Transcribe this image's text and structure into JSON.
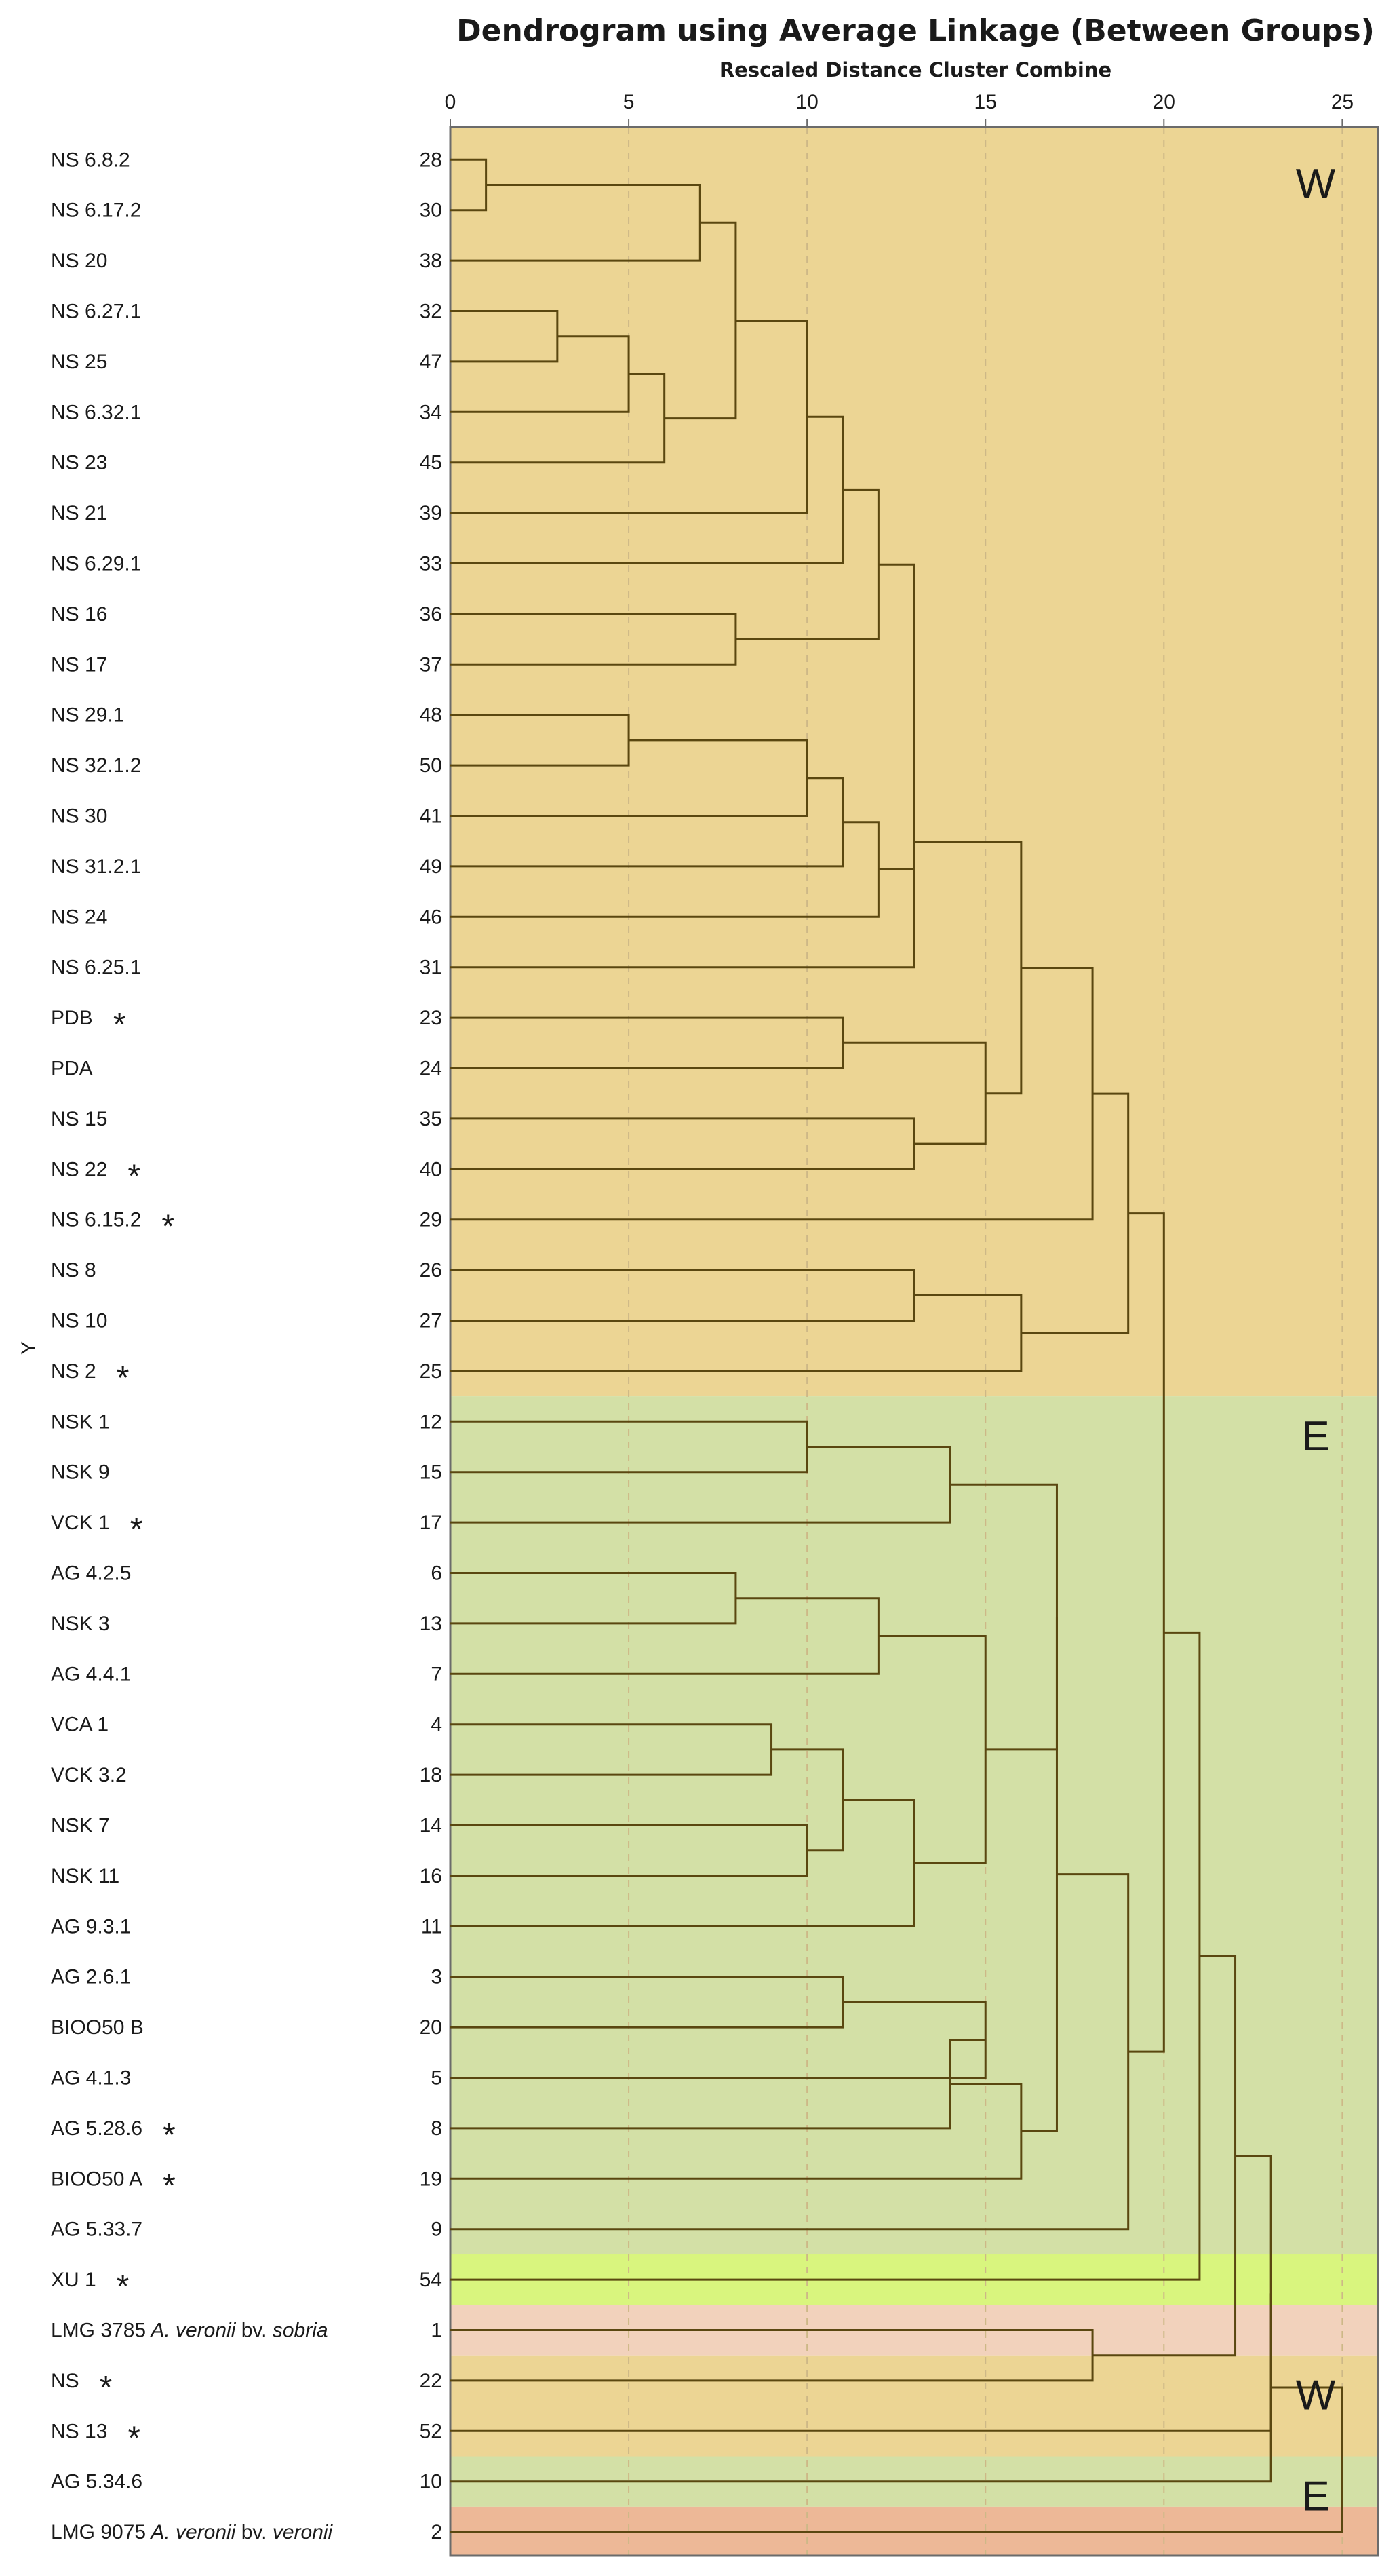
{
  "chart_data": {
    "type": "dendrogram",
    "title": "Dendrogram using Average Linkage (Between Groups)",
    "subtitle": "Rescaled Distance Cluster Combine",
    "ylabel": "Y",
    "xlim": [
      0,
      26
    ],
    "xticks": [
      0,
      5,
      10,
      15,
      20,
      25
    ],
    "leaves": [
      {
        "label": "NS 6.8.2",
        "id": 28,
        "mark": ""
      },
      {
        "label": "NS 6.17.2",
        "id": 30,
        "mark": ""
      },
      {
        "label": "NS 20",
        "id": 38,
        "mark": ""
      },
      {
        "label": "NS  6.27.1",
        "id": 32,
        "mark": ""
      },
      {
        "label": "NS 25",
        "id": 47,
        "mark": ""
      },
      {
        "label": "NS 6.32.1",
        "id": 34,
        "mark": ""
      },
      {
        "label": "NS 23",
        "id": 45,
        "mark": ""
      },
      {
        "label": "NS 21",
        "id": 39,
        "mark": ""
      },
      {
        "label": "NS 6.29.1",
        "id": 33,
        "mark": ""
      },
      {
        "label": "NS 16",
        "id": 36,
        "mark": ""
      },
      {
        "label": "NS 17",
        "id": 37,
        "mark": ""
      },
      {
        "label": "NS 29.1",
        "id": 48,
        "mark": ""
      },
      {
        "label": "NS 32.1.2",
        "id": 50,
        "mark": ""
      },
      {
        "label": "NS 30",
        "id": 41,
        "mark": ""
      },
      {
        "label": "NS 31.2.1",
        "id": 49,
        "mark": ""
      },
      {
        "label": "NS 24",
        "id": 46,
        "mark": ""
      },
      {
        "label": "NS 6.25.1",
        "id": 31,
        "mark": ""
      },
      {
        "label": "PDB",
        "id": 23,
        "mark": "*"
      },
      {
        "label": "PDA",
        "id": 24,
        "mark": ""
      },
      {
        "label": "NS 15",
        "id": 35,
        "mark": ""
      },
      {
        "label": "NS 22",
        "id": 40,
        "mark": "*"
      },
      {
        "label": "NS 6.15.2",
        "id": 29,
        "mark": "*"
      },
      {
        "label": "NS 8",
        "id": 26,
        "mark": ""
      },
      {
        "label": "NS 10",
        "id": 27,
        "mark": ""
      },
      {
        "label": "NS 2",
        "id": 25,
        "mark": "*"
      },
      {
        "label": "NSK 1",
        "id": 12,
        "mark": ""
      },
      {
        "label": "NSK 9",
        "id": 15,
        "mark": ""
      },
      {
        "label": "VCK 1",
        "id": 17,
        "mark": "*"
      },
      {
        "label": "AG  4.2.5",
        "id": 6,
        "mark": ""
      },
      {
        "label": "NSK 3",
        "id": 13,
        "mark": ""
      },
      {
        "label": "AG  4.4.1",
        "id": 7,
        "mark": ""
      },
      {
        "label": "VCA 1",
        "id": 4,
        "mark": ""
      },
      {
        "label": "VCK 3.2",
        "id": 18,
        "mark": ""
      },
      {
        "label": "NSK 7",
        "id": 14,
        "mark": ""
      },
      {
        "label": "NSK 11",
        "id": 16,
        "mark": ""
      },
      {
        "label": "AG 9.3.1",
        "id": 11,
        "mark": ""
      },
      {
        "label": "AG 2.6.1",
        "id": 3,
        "mark": ""
      },
      {
        "label": "BIOO50 B",
        "id": 20,
        "mark": ""
      },
      {
        "label": "AG  4.1.3",
        "id": 5,
        "mark": ""
      },
      {
        "label": "AG  5.28.6",
        "id": 8,
        "mark": "*"
      },
      {
        "label": "BIOO50 A",
        "id": 19,
        "mark": "*"
      },
      {
        "label": "AG 5.33.7",
        "id": 9,
        "mark": ""
      },
      {
        "label": "XU 1",
        "id": 54,
        "mark": "*"
      },
      {
        "label": "LMG 3785",
        "species": "A. veronii",
        "biovar": "bv.",
        "biovar_name": "sobria",
        "id": 1,
        "mark": ""
      },
      {
        "label": "NS",
        "id": 22,
        "mark": "*"
      },
      {
        "label": "NS 13",
        "id": 52,
        "mark": "*"
      },
      {
        "label": "AG 5.34.6",
        "id": 10,
        "mark": ""
      },
      {
        "label": "LMG 9075",
        "species": "A. veronii",
        "biovar": "bv.",
        "biovar_name": "veronii",
        "id": 2,
        "mark": ""
      }
    ],
    "merges": [
      {
        "name": "c1",
        "a": 0,
        "b": 1,
        "h": 1
      },
      {
        "name": "c2",
        "a": "c1",
        "b": 2,
        "h": 7
      },
      {
        "name": "c3",
        "a": 3,
        "b": 4,
        "h": 3
      },
      {
        "name": "c4",
        "a": "c3",
        "b": 5,
        "h": 5
      },
      {
        "name": "c5",
        "a": "c4",
        "b": 6,
        "h": 6
      },
      {
        "name": "c6",
        "a": "c2",
        "b": "c5",
        "h": 8
      },
      {
        "name": "c7",
        "a": "c6",
        "b": 7,
        "h": 10
      },
      {
        "name": "c8",
        "a": "c7",
        "b": 8,
        "h": 11
      },
      {
        "name": "c9",
        "a": 9,
        "b": 10,
        "h": 8
      },
      {
        "name": "c10",
        "a": "c8",
        "b": "c9",
        "h": 12
      },
      {
        "name": "c11",
        "a": 11,
        "b": 12,
        "h": 5
      },
      {
        "name": "c12",
        "a": "c11",
        "b": 13,
        "h": 10
      },
      {
        "name": "c13",
        "a": "c12",
        "b": 14,
        "h": 11
      },
      {
        "name": "c14",
        "a": "c13",
        "b": 15,
        "h": 12
      },
      {
        "name": "c15",
        "a": "c10",
        "b": "c14",
        "h": 13
      },
      {
        "name": "c16",
        "a": "c15",
        "b": 16,
        "h": 13
      },
      {
        "name": "c17",
        "a": 17,
        "b": 18,
        "h": 11
      },
      {
        "name": "c18",
        "a": 19,
        "b": 20,
        "h": 13
      },
      {
        "name": "c19",
        "a": "c17",
        "b": "c18",
        "h": 15
      },
      {
        "name": "c20",
        "a": "c16",
        "b": "c19",
        "h": 16
      },
      {
        "name": "c21",
        "a": "c20",
        "b": 21,
        "h": 18
      },
      {
        "name": "c22",
        "a": 22,
        "b": 23,
        "h": 13
      },
      {
        "name": "c23",
        "a": "c22",
        "b": 24,
        "h": 16
      },
      {
        "name": "c24",
        "a": "c21",
        "b": "c23",
        "h": 19
      },
      {
        "name": "c25",
        "a": 25,
        "b": 26,
        "h": 10
      },
      {
        "name": "c26",
        "a": "c25",
        "b": 27,
        "h": 14
      },
      {
        "name": "c27",
        "a": 28,
        "b": 29,
        "h": 8
      },
      {
        "name": "c28",
        "a": "c27",
        "b": 30,
        "h": 12
      },
      {
        "name": "c29",
        "a": 31,
        "b": 32,
        "h": 9
      },
      {
        "name": "c30",
        "a": 33,
        "b": 34,
        "h": 10
      },
      {
        "name": "c31",
        "a": "c29",
        "b": "c30",
        "h": 11
      },
      {
        "name": "c32",
        "a": "c31",
        "b": 35,
        "h": 13
      },
      {
        "name": "c33",
        "a": "c28",
        "b": "c32",
        "h": 15
      },
      {
        "name": "c34",
        "a": "c26",
        "b": "c33",
        "h": 17
      },
      {
        "name": "c35",
        "a": 36,
        "b": 37,
        "h": 11
      },
      {
        "name": "c36",
        "a": "c35",
        "b": 38,
        "h": 15
      },
      {
        "name": "c37",
        "a": "c36",
        "b": 39,
        "h": 14
      },
      {
        "name": "c38",
        "a": "c37",
        "b": 40,
        "h": 16
      },
      {
        "name": "c39",
        "a": "c34",
        "b": "c38",
        "h": 17
      },
      {
        "name": "c40",
        "a": "c39",
        "b": 41,
        "h": 19
      },
      {
        "name": "c41",
        "a": "c24",
        "b": "c40",
        "h": 20
      },
      {
        "name": "c42",
        "a": "c41",
        "b": 42,
        "h": 21
      },
      {
        "name": "c43",
        "a": 43,
        "b": 44,
        "h": 18
      },
      {
        "name": "c44",
        "a": "c42",
        "b": "c43",
        "h": 22
      },
      {
        "name": "c45",
        "a": "c44",
        "b": 45,
        "h": 23
      },
      {
        "name": "c46",
        "a": "c45",
        "b": 46,
        "h": 23
      },
      {
        "name": "c47",
        "a": "c46",
        "b": 47,
        "h": 25
      }
    ],
    "bands": [
      {
        "from": 0,
        "to": 24,
        "color": "#ecd594",
        "tag": "W"
      },
      {
        "from": 25,
        "to": 41,
        "color": "#d3e0a6",
        "tag": "E"
      },
      {
        "from": 42,
        "to": 42,
        "color": "#d9f57e",
        "tag": ""
      },
      {
        "from": 43,
        "to": 43,
        "color": "#f2d2bc",
        "tag": ""
      },
      {
        "from": 44,
        "to": 45,
        "color": "#ecd594",
        "tag": "W"
      },
      {
        "from": 46,
        "to": 46,
        "color": "#d3e0a6",
        "tag": "E"
      },
      {
        "from": 47,
        "to": 47,
        "color": "#edb897",
        "tag": ""
      }
    ],
    "colors": {
      "line": "#5a4710",
      "grid": "#cdb887",
      "text": "#1a1a1a"
    }
  }
}
